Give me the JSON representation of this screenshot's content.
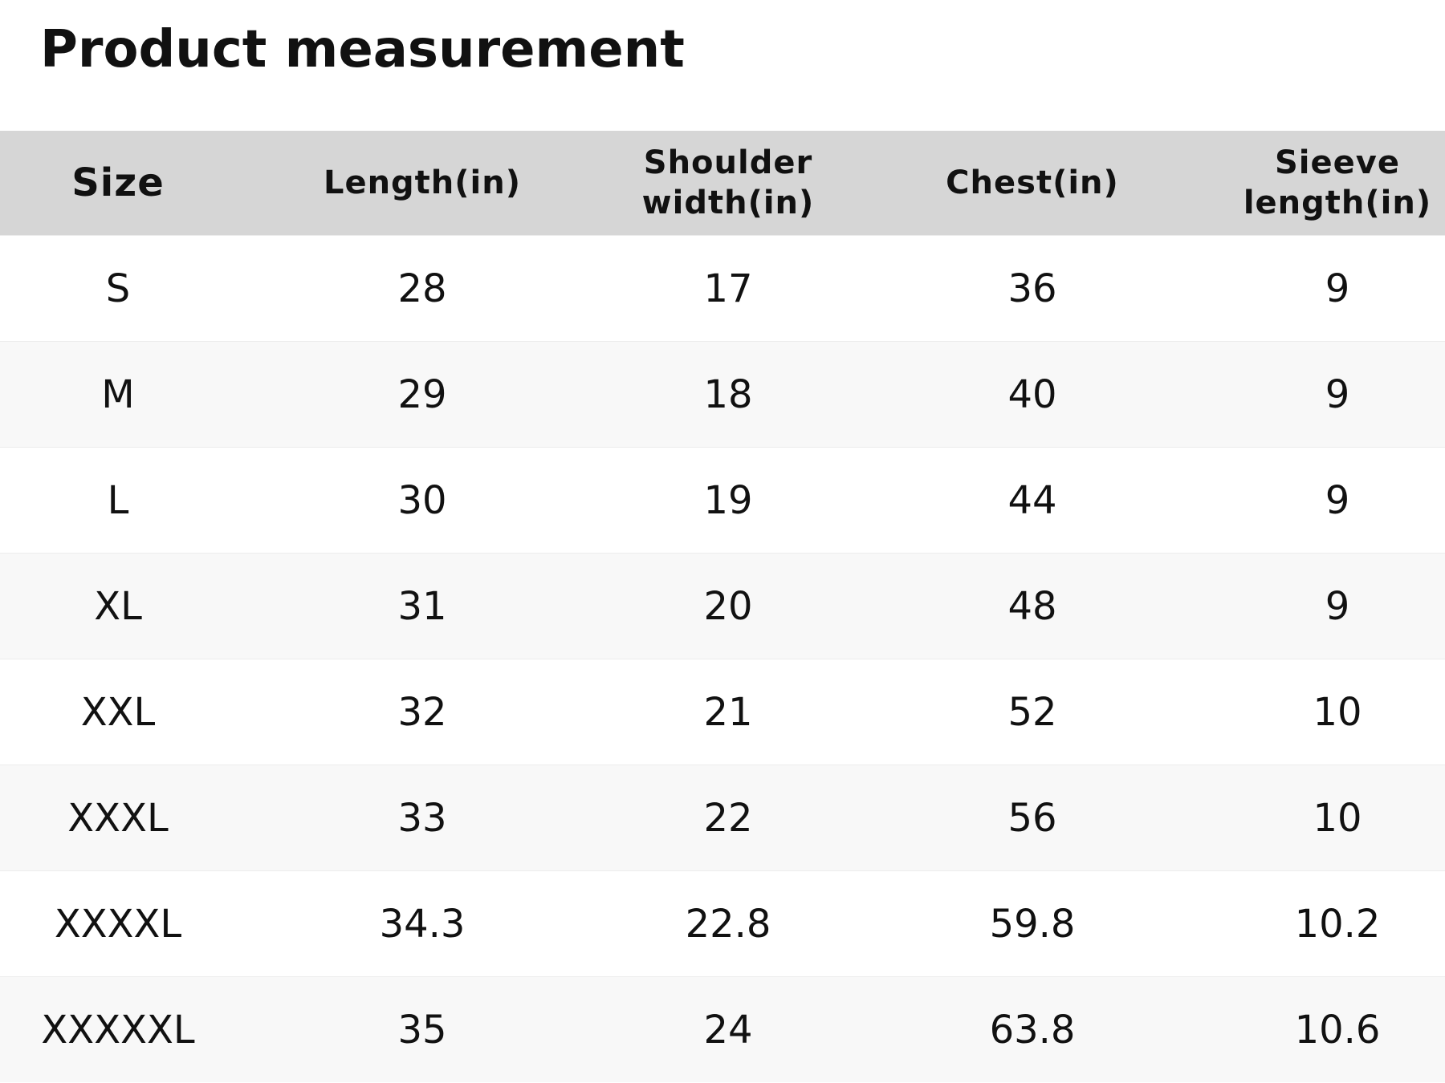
{
  "title": "Product measurement",
  "table": {
    "header": [
      "Size",
      "Length(in)",
      "Shoulder width(in)",
      "Chest(in)",
      "Sieeve length(in)"
    ],
    "rows": [
      [
        "S",
        28,
        17,
        36,
        9
      ],
      [
        "M",
        29,
        18,
        40,
        9
      ],
      [
        "L",
        30,
        19,
        44,
        9
      ],
      [
        "XL",
        31,
        20,
        48,
        9
      ],
      [
        "XXL",
        32,
        21,
        52,
        10
      ],
      [
        "XXXL",
        33,
        22,
        56,
        10
      ],
      [
        "XXXXL",
        34.3,
        22.8,
        59.8,
        10.2
      ],
      [
        "XXXXXL",
        35,
        24,
        63.8,
        10.6
      ]
    ]
  }
}
